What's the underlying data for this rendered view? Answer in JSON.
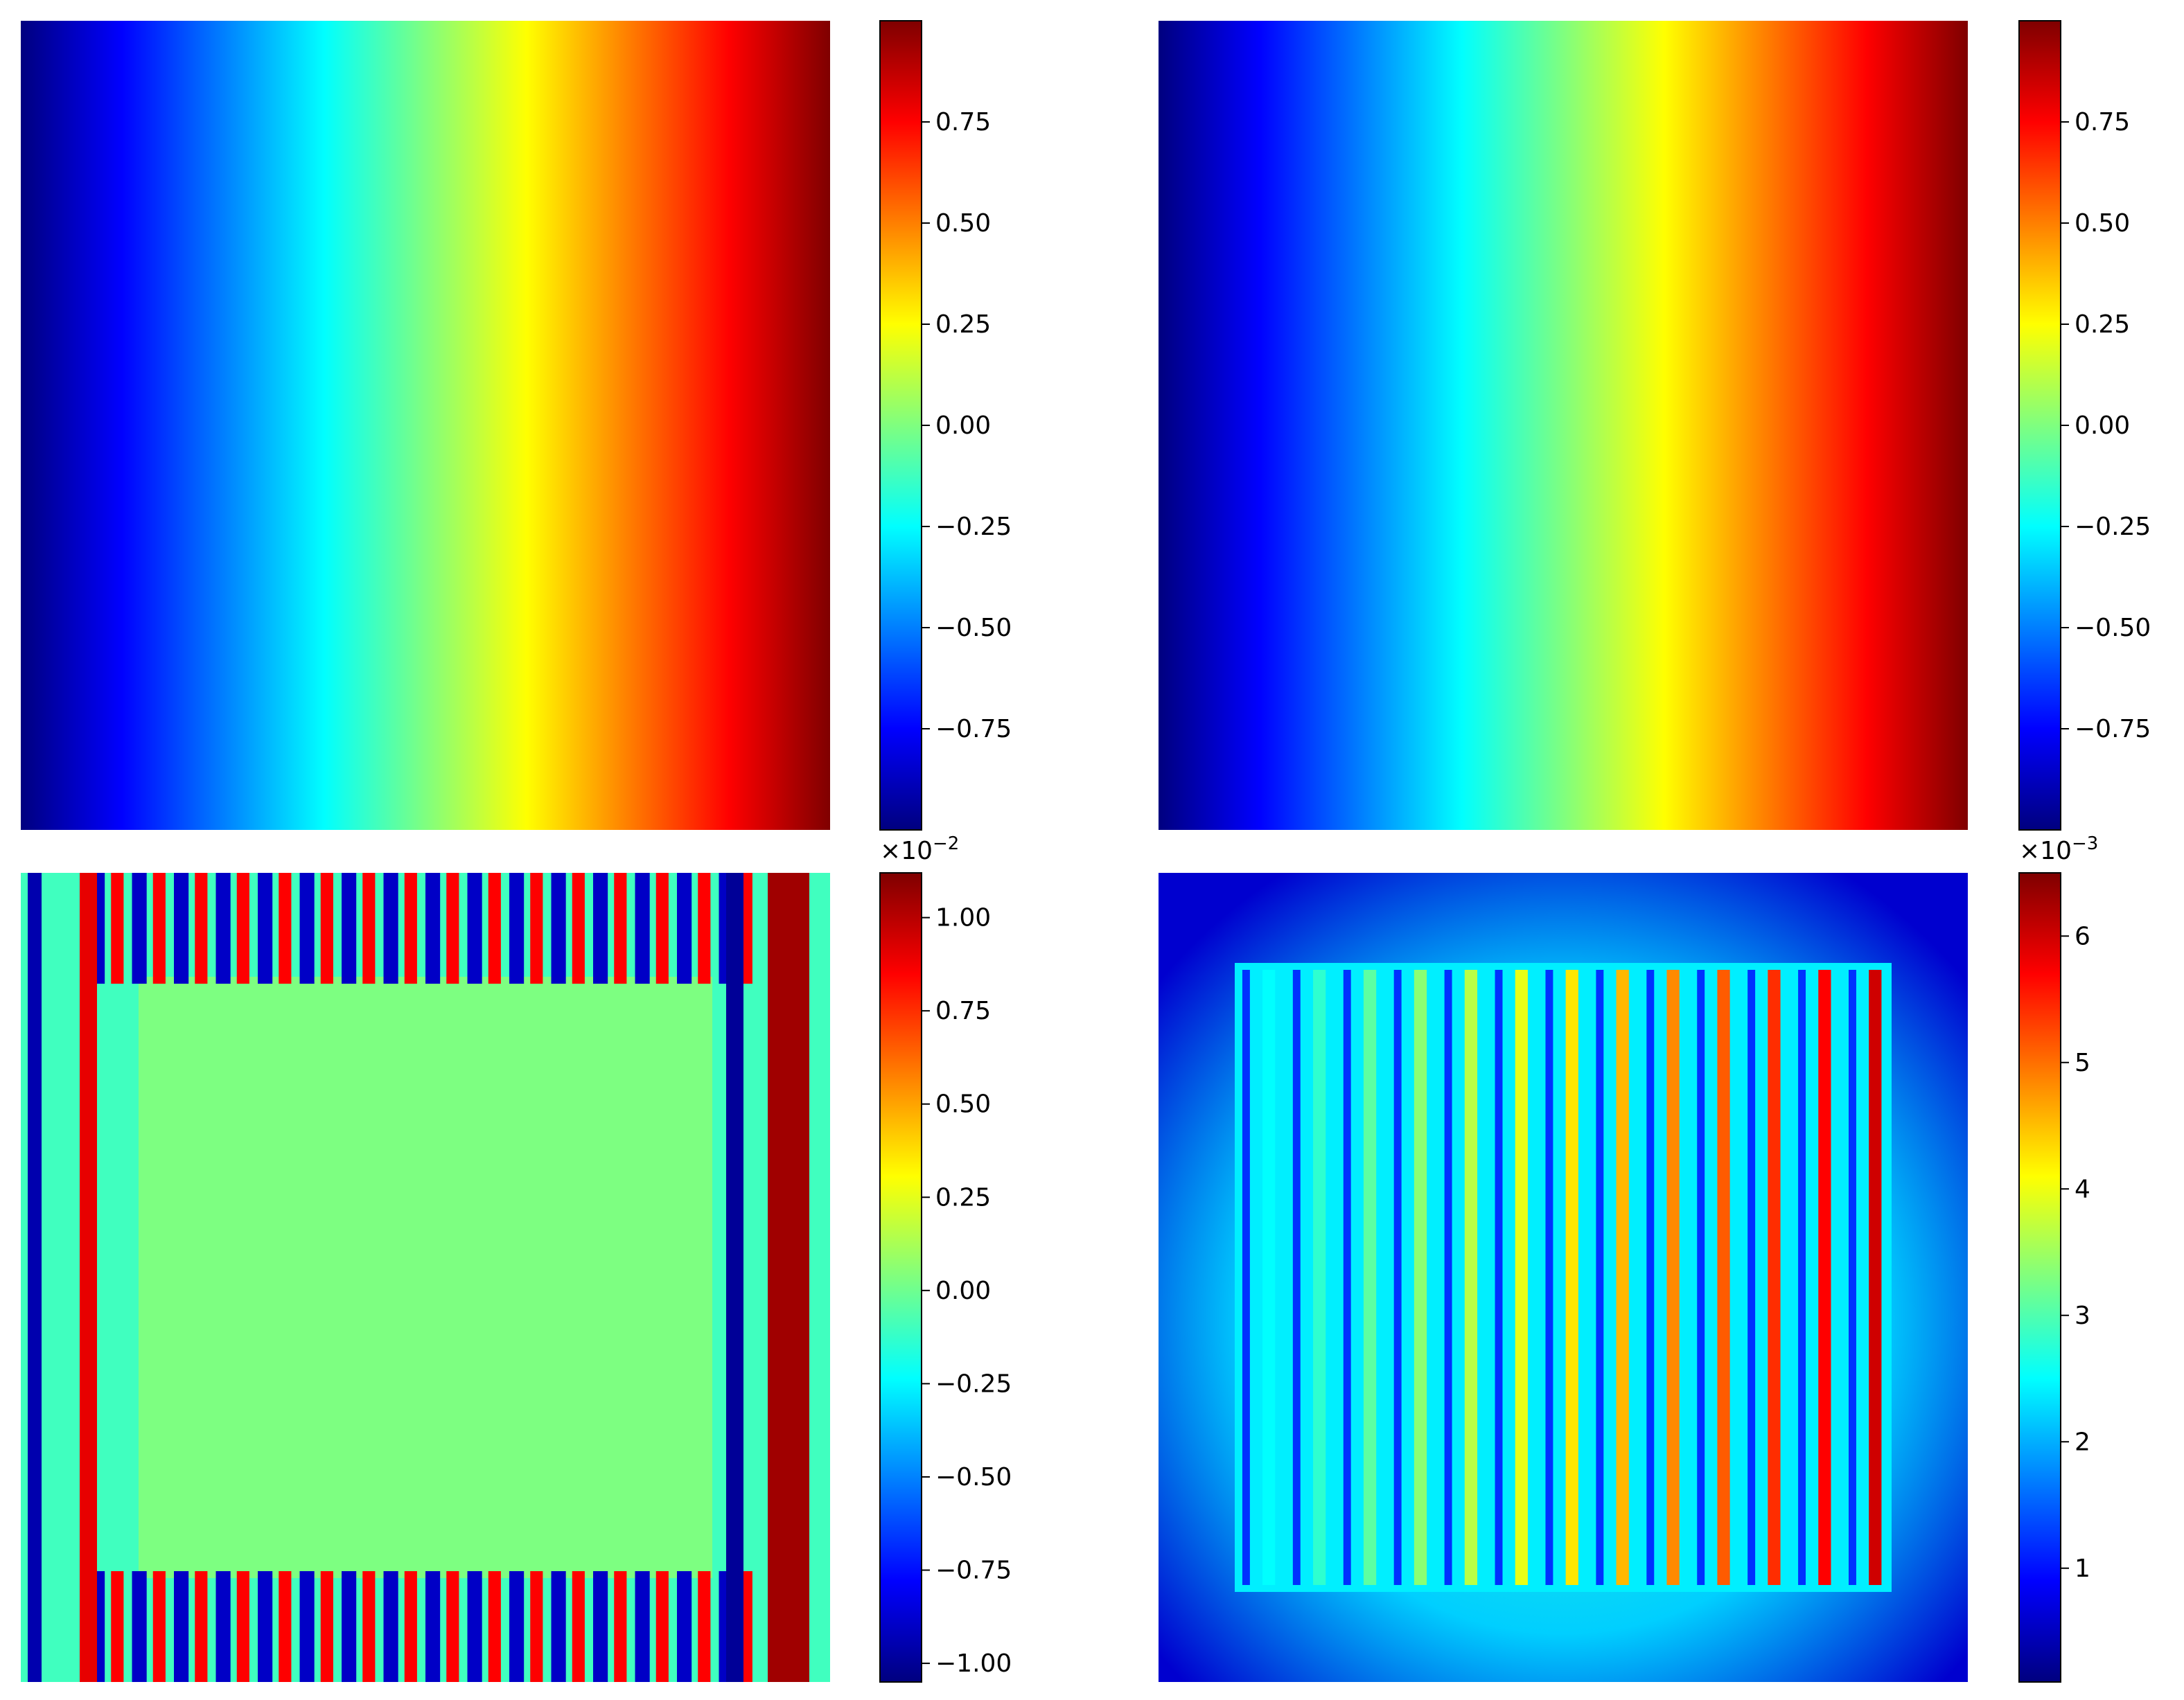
{
  "colormap": "jet",
  "jet_stops": [
    "#00007f",
    "#0000ff",
    "#007fff",
    "#00ffff",
    "#7fff7f",
    "#ffff00",
    "#ff7f00",
    "#ff0000",
    "#7f0000"
  ],
  "chart_data": [
    {
      "type": "heatmap",
      "panel": "top-left",
      "title": "",
      "pattern": "horizontal-gradient",
      "x_axis_visible": false,
      "y_axis_visible": false,
      "colorbar": {
        "range": [
          -1.0,
          1.0
        ],
        "ticks": [
          -0.75,
          -0.5,
          -0.25,
          0.0,
          0.25,
          0.5,
          0.75
        ],
        "tick_labels": [
          "−0.75",
          "−0.50",
          "−0.25",
          "0.00",
          "0.25",
          "0.50",
          "0.75"
        ],
        "offset_label": ""
      }
    },
    {
      "type": "heatmap",
      "panel": "top-right",
      "title": "",
      "pattern": "horizontal-gradient",
      "x_axis_visible": false,
      "y_axis_visible": false,
      "colorbar": {
        "range": [
          -1.0,
          1.0
        ],
        "ticks": [
          -0.75,
          -0.5,
          -0.25,
          0.0,
          0.25,
          0.5,
          0.75
        ],
        "tick_labels": [
          "−0.75",
          "−0.50",
          "−0.25",
          "0.00",
          "0.25",
          "0.50",
          "0.75"
        ],
        "offset_label": ""
      }
    },
    {
      "type": "heatmap",
      "panel": "bottom-left",
      "title": "",
      "pattern": "periodic-stripes-with-boundary",
      "x_axis_visible": false,
      "y_axis_visible": false,
      "colorbar": {
        "range": [
          -1.05,
          1.12
        ],
        "ticks": [
          -1.0,
          -0.75,
          -0.5,
          -0.25,
          0.0,
          0.25,
          0.5,
          0.75,
          1.0
        ],
        "tick_labels": [
          "−1.00",
          "−0.75",
          "−0.50",
          "−0.25",
          "0.00",
          "0.25",
          "0.50",
          "0.75",
          "1.00"
        ],
        "offset_label": "×10",
        "offset_exponent": "−2"
      }
    },
    {
      "type": "heatmap",
      "panel": "bottom-right",
      "title": "",
      "pattern": "error-columns",
      "x_axis_visible": false,
      "y_axis_visible": false,
      "colorbar": {
        "range": [
          0.1,
          6.5
        ],
        "ticks": [
          1,
          2,
          3,
          4,
          5,
          6
        ],
        "tick_labels": [
          "1",
          "2",
          "3",
          "4",
          "5",
          "6"
        ],
        "offset_label": "×10",
        "offset_exponent": "−3"
      }
    }
  ]
}
